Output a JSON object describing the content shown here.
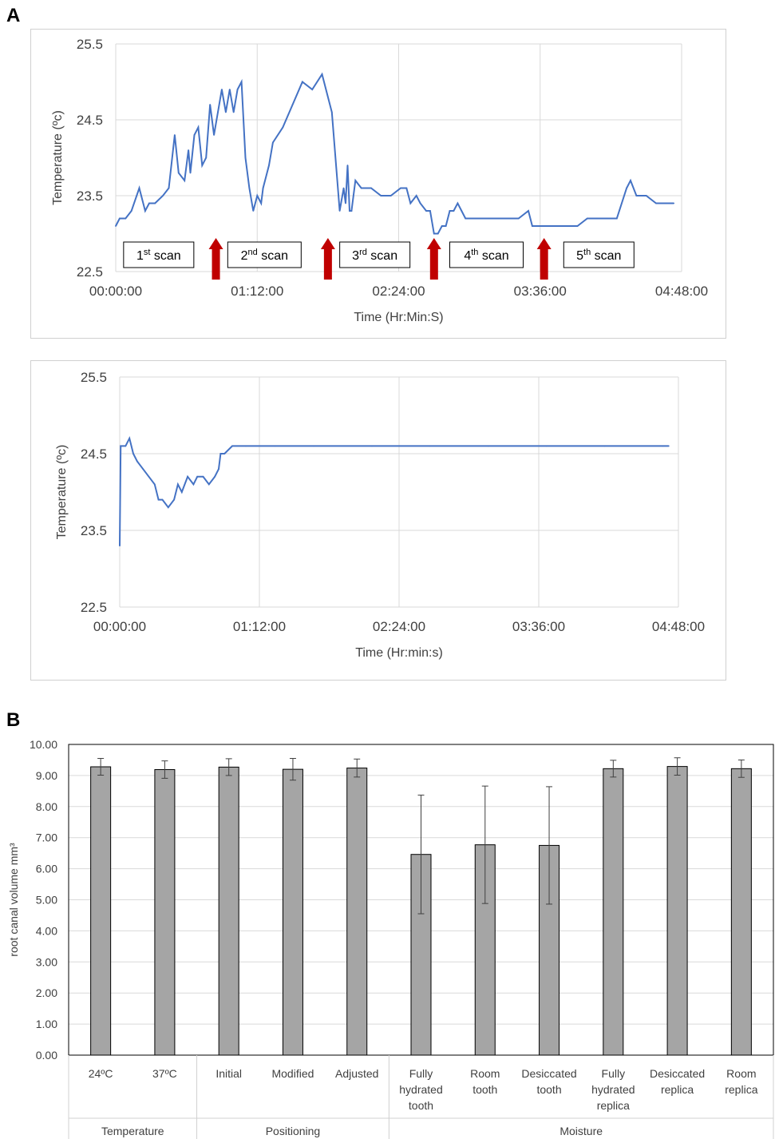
{
  "panel_labels": {
    "a": "A",
    "b": "B"
  },
  "colors": {
    "line": "#4472c4",
    "arrow": "#c00000",
    "bar": "#a5a5a5",
    "grid": "#d9d9d9"
  },
  "chart_data": [
    {
      "type": "line",
      "panel": "A",
      "xlabel": "Time (Hr:Min:S)",
      "ylabel": "Temperature (ºc)",
      "ylim": [
        22.5,
        25.5
      ],
      "xlim_minutes": [
        0,
        288
      ],
      "yticks": [
        "25.5",
        "24.5",
        "23.5",
        "22.5"
      ],
      "xticks": [
        "00:00:00",
        "01:12:00",
        "02:24:00",
        "03:36:00",
        "04:48:00"
      ],
      "grid": true,
      "series": [
        {
          "x_minutes": [
            0,
            2,
            5,
            8,
            12,
            15,
            17,
            20,
            24,
            27,
            30,
            32,
            35,
            37,
            38,
            40,
            42,
            44,
            46,
            48,
            50,
            52,
            54,
            56,
            58,
            60,
            62,
            64,
            66,
            68,
            70,
            72,
            74,
            75,
            78,
            80,
            85,
            90,
            95,
            100,
            105,
            110,
            114,
            116,
            117,
            118,
            119,
            120,
            122,
            125,
            130,
            135,
            140,
            145,
            148,
            150,
            153,
            155,
            158,
            160,
            162,
            164,
            166,
            168,
            170,
            172,
            174,
            176,
            178,
            180,
            182,
            185,
            190,
            195,
            200,
            205,
            210,
            212,
            214,
            216,
            218,
            220,
            225,
            230,
            235,
            240,
            245,
            250,
            255,
            260,
            262,
            265,
            270,
            275,
            280,
            282,
            284
          ],
          "y": [
            23.1,
            23.2,
            23.2,
            23.3,
            23.6,
            23.3,
            23.4,
            23.4,
            23.5,
            23.6,
            24.3,
            23.8,
            23.7,
            24.1,
            23.8,
            24.3,
            24.4,
            23.9,
            24.0,
            24.7,
            24.3,
            24.6,
            24.9,
            24.6,
            24.9,
            24.6,
            24.9,
            25.0,
            24.0,
            23.6,
            23.3,
            23.5,
            23.4,
            23.6,
            23.9,
            24.2,
            24.4,
            24.7,
            25.0,
            24.9,
            25.1,
            24.6,
            23.3,
            23.6,
            23.4,
            23.9,
            23.3,
            23.3,
            23.7,
            23.6,
            23.6,
            23.5,
            23.5,
            23.6,
            23.6,
            23.4,
            23.5,
            23.4,
            23.3,
            23.3,
            23.0,
            23.0,
            23.1,
            23.1,
            23.3,
            23.3,
            23.4,
            23.3,
            23.2,
            23.2,
            23.2,
            23.2,
            23.2,
            23.2,
            23.2,
            23.2,
            23.3,
            23.1,
            23.1,
            23.1,
            23.1,
            23.1,
            23.1,
            23.1,
            23.1,
            23.2,
            23.2,
            23.2,
            23.2,
            23.6,
            23.7,
            23.5,
            23.5,
            23.4,
            23.4,
            23.4,
            23.4
          ]
        }
      ],
      "annotations": [
        {
          "base": "1",
          "sup": "st",
          "text": "scan"
        },
        {
          "base": "2",
          "sup": "nd",
          "text": "scan"
        },
        {
          "base": "3",
          "sup": "rd",
          "text": "scan"
        },
        {
          "base": "4",
          "sup": "th",
          "text": "scan"
        },
        {
          "base": "5",
          "sup": "th",
          "text": "scan"
        }
      ],
      "arrow_times_minutes": [
        51,
        108,
        162,
        218
      ]
    },
    {
      "type": "line",
      "panel": "A-lower",
      "xlabel": "Time (Hr:min:s)",
      "ylabel": "Temperature (ºc)",
      "ylim": [
        22.5,
        25.5
      ],
      "xlim_minutes": [
        0,
        288
      ],
      "yticks": [
        "25.5",
        "24.5",
        "23.5",
        "22.5"
      ],
      "xticks": [
        "00:00:00",
        "01:12:00",
        "02:24:00",
        "03:36:00",
        "04:48:00"
      ],
      "grid": true,
      "series": [
        {
          "x_minutes": [
            0,
            0.5,
            1,
            3,
            5,
            7,
            9,
            12,
            15,
            18,
            20,
            22,
            25,
            28,
            30,
            32,
            35,
            38,
            40,
            43,
            46,
            49,
            51,
            52,
            54,
            58,
            65,
            80,
            100,
            130,
            160,
            190,
            220,
            250,
            280,
            283
          ],
          "y": [
            23.3,
            24.6,
            24.6,
            24.6,
            24.7,
            24.5,
            24.4,
            24.3,
            24.2,
            24.1,
            23.9,
            23.9,
            23.8,
            23.9,
            24.1,
            24.0,
            24.2,
            24.1,
            24.2,
            24.2,
            24.1,
            24.2,
            24.3,
            24.5,
            24.5,
            24.6,
            24.6,
            24.6,
            24.6,
            24.6,
            24.6,
            24.6,
            24.6,
            24.6,
            24.6,
            24.6
          ]
        }
      ]
    },
    {
      "type": "bar",
      "panel": "B",
      "ylabel": "root canal volume mm³",
      "ylim": [
        0,
        10
      ],
      "yticks": [
        "0.00",
        "1.00",
        "2.00",
        "3.00",
        "4.00",
        "5.00",
        "6.00",
        "7.00",
        "8.00",
        "9.00",
        "10.00"
      ],
      "grid": true,
      "categories": [
        [
          "24ºC"
        ],
        [
          "37ºC"
        ],
        [
          "Initial"
        ],
        [
          "Modified"
        ],
        [
          "Adjusted"
        ],
        [
          "Fully",
          "hydrated",
          "tooth"
        ],
        [
          "Room",
          "tooth"
        ],
        [
          "Desiccated",
          "tooth"
        ],
        [
          "Fully",
          "hydrated",
          "replica"
        ],
        [
          "Desiccated",
          "replica"
        ],
        [
          "Room",
          "replica"
        ]
      ],
      "values": [
        9.28,
        9.19,
        9.27,
        9.2,
        9.24,
        6.46,
        6.77,
        6.75,
        9.22,
        9.29,
        9.22
      ],
      "error": [
        0.27,
        0.28,
        0.27,
        0.35,
        0.29,
        1.91,
        1.89,
        1.89,
        0.27,
        0.28,
        0.28
      ],
      "groups": [
        {
          "label": "Temperature",
          "span": 2
        },
        {
          "label": "Positioning",
          "span": 3
        },
        {
          "label": "Moisture",
          "span": 6
        }
      ]
    }
  ]
}
